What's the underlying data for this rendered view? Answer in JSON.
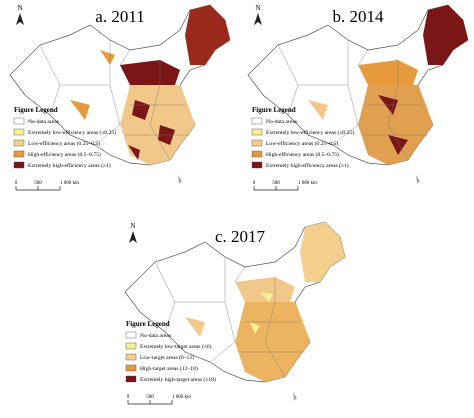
{
  "panels": [
    {
      "title": "a. 2011",
      "legend_title": "Figure Legend",
      "legend": [
        "No-data areas",
        "Extremely low-efficiency areas (≤0.25)",
        "Low-efficiency areas (0.25–0.5)",
        "High-efficiency areas (0.5–0.75)",
        "Extremely high-efficiency areas (≥1)"
      ],
      "north": "N",
      "scale_labels": [
        "0",
        "500",
        "1 000 km"
      ]
    },
    {
      "title": "b. 2014",
      "legend_title": "Figure Legend",
      "legend": [
        "No-data areas",
        "Extremely low-efficiency areas (≤0.25)",
        "Low-efficiency areas (0.25–0.5)",
        "High-efficiency areas (0.5–0.75)",
        "Extremely high-efficiency areas (≥1)"
      ],
      "north": "N",
      "scale_labels": [
        "0",
        "500",
        "1 000 km"
      ]
    },
    {
      "title": "c. 2017",
      "legend_title": "Figure Legend",
      "legend": [
        "No-data areas",
        "Extremely low-target areas (≤6)",
        "Low-target areas (6–12)",
        "High-target areas (12–18)",
        "Extremely high-target areas (≥18)"
      ],
      "north": "N",
      "scale_labels": [
        "0",
        "500",
        "1 000 km"
      ]
    }
  ]
}
